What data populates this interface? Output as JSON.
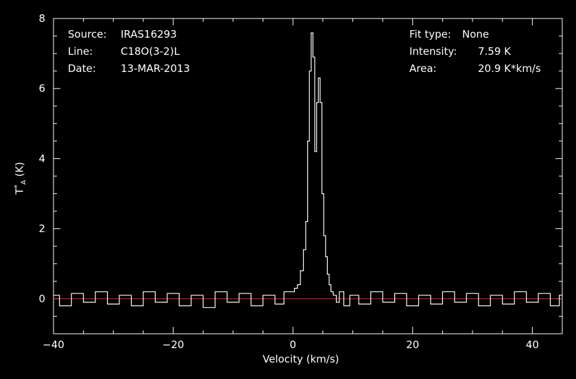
{
  "header": {
    "left": {
      "source_label": "Source:",
      "source_value": "IRAS16293",
      "line_label": "Line:",
      "line_value": "C18O(3-2)L",
      "date_label": "Date:",
      "date_value": "13-MAR-2013"
    },
    "right": {
      "fit_label": "Fit type:",
      "fit_value": "None",
      "intensity_label": "Intensity:",
      "intensity_value": "7.59 K",
      "area_label": "Area:",
      "area_value": "20.9 K*km/s"
    }
  },
  "chart_data": {
    "type": "line",
    "xlabel": "Velocity (km/s)",
    "ylabel_main": "T",
    "ylabel_sup": "*",
    "ylabel_sub": "A",
    "ylabel_unit": "(K)",
    "xlim": [
      -40,
      45
    ],
    "ylim": [
      -1,
      8
    ],
    "xticks": [
      -40,
      -20,
      0,
      20,
      40
    ],
    "yticks": [
      0,
      2,
      4,
      6,
      8
    ],
    "baseline": 0,
    "colors": {
      "spectrum": "#ffffff",
      "baseline": "#ff2020",
      "frame": "#ffffff",
      "background": "#000000"
    },
    "series": [
      {
        "name": "",
        "x": [
          -40,
          -38,
          -36,
          -34,
          -32,
          -30,
          -28,
          -26,
          -24,
          -22,
          -20,
          -18,
          -16,
          -14,
          -12,
          -10,
          -8,
          -6,
          -4,
          -2,
          -1,
          0,
          0.5,
          1,
          1.5,
          2,
          2.3,
          2.6,
          2.9,
          3.2,
          3.5,
          3.8,
          4.1,
          4.4,
          4.7,
          5.0,
          5.3,
          5.6,
          5.9,
          6.2,
          6.5,
          7.0,
          7.5,
          8.0,
          9,
          10,
          12,
          14,
          16,
          18,
          20,
          22,
          24,
          26,
          28,
          30,
          32,
          34,
          36,
          38,
          40,
          42,
          44,
          45
        ],
        "y": [
          0.1,
          -0.2,
          0.15,
          -0.1,
          0.2,
          -0.15,
          0.1,
          -0.2,
          0.2,
          -0.1,
          0.15,
          -0.2,
          0.1,
          -0.25,
          0.2,
          -0.1,
          0.15,
          -0.2,
          0.1,
          -0.15,
          0.2,
          0.2,
          0.3,
          0.4,
          0.8,
          1.4,
          2.2,
          4.5,
          6.5,
          7.59,
          6.9,
          4.2,
          5.6,
          6.3,
          5.6,
          3.0,
          1.8,
          1.2,
          0.7,
          0.4,
          0.2,
          0.1,
          -0.1,
          0.2,
          -0.2,
          0.1,
          -0.15,
          0.2,
          -0.1,
          0.15,
          -0.2,
          0.1,
          -0.15,
          0.2,
          -0.1,
          0.15,
          -0.2,
          0.1,
          -0.15,
          0.2,
          -0.1,
          0.15,
          -0.2,
          0.1
        ]
      }
    ]
  }
}
